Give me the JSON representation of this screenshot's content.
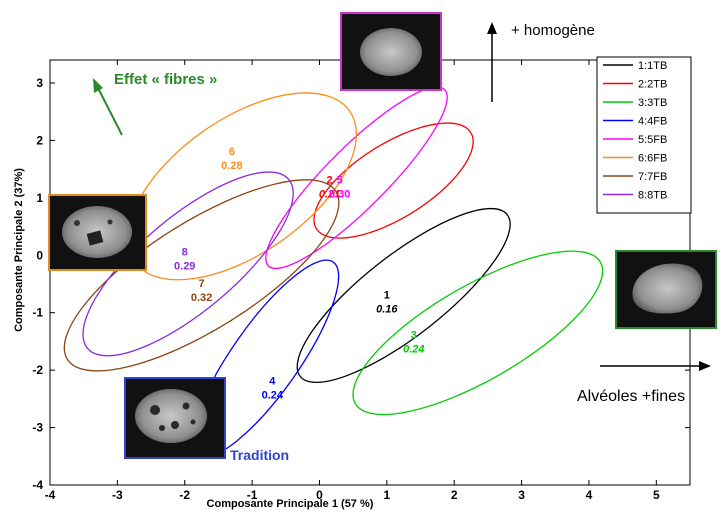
{
  "chart_data": {
    "type": "scatter",
    "xlabel": "Composante Principale 1 (57 %)",
    "ylabel": "Composante Principale 2 (37%)",
    "xlim": [
      -4,
      5.5
    ],
    "ylim": [
      -4,
      3.4
    ],
    "xticks": [
      -4,
      -3,
      -2,
      -1,
      0,
      1,
      2,
      3,
      4,
      5
    ],
    "yticks": [
      -4,
      -3,
      -2,
      -1,
      0,
      1,
      2,
      3
    ],
    "grid": false,
    "legend_position": "top-right",
    "series": [
      {
        "name": "1:1TB",
        "color": "#000000",
        "label_num": "1",
        "label_val": "0.16",
        "italic": true,
        "ellipse": {
          "cx": 1.25,
          "cy": -0.7,
          "rx": 1.95,
          "ry": 0.6,
          "angle_deg": 38
        },
        "label_pos": [
          1.0,
          -0.75
        ]
      },
      {
        "name": "2:2TB",
        "color": "#ff0000",
        "label_num": "2",
        "label_val": "0.21",
        "italic": true,
        "ellipse": {
          "cx": 1.1,
          "cy": 1.3,
          "rx": 1.35,
          "ry": 0.55,
          "angle_deg": 32
        },
        "label_pos": [
          0.15,
          1.25
        ]
      },
      {
        "name": "3:3TB",
        "color": "#00cc00",
        "label_num": "3",
        "label_val": "0.24",
        "italic": true,
        "ellipse": {
          "cx": 2.35,
          "cy": -1.35,
          "rx": 2.1,
          "ry": 0.7,
          "angle_deg": 30
        },
        "label_pos": [
          1.4,
          -1.45
        ]
      },
      {
        "name": "4:4FB",
        "color": "#0000ff",
        "label_num": "4",
        "label_val": "0.24",
        "italic": false,
        "ellipse": {
          "cx": -0.8,
          "cy": -1.8,
          "rx": 1.75,
          "ry": 0.5,
          "angle_deg": 55
        },
        "label_pos": [
          -0.7,
          -2.25
        ]
      },
      {
        "name": "5:5FB",
        "color": "#ff00ff",
        "label_num": "5",
        "label_val": "0.30",
        "italic": false,
        "ellipse": {
          "cx": 0.55,
          "cy": 1.35,
          "rx": 1.85,
          "ry": 0.45,
          "angle_deg": 45
        },
        "label_pos": [
          0.3,
          1.25
        ]
      },
      {
        "name": "6:6FB",
        "color": "#ff8c1a",
        "label_num": "6",
        "label_val": "0.28",
        "italic": false,
        "ellipse": {
          "cx": -1.15,
          "cy": 1.2,
          "rx": 1.95,
          "ry": 1.0,
          "angle_deg": 35
        },
        "label_pos": [
          -1.3,
          1.75
        ]
      },
      {
        "name": "7:7FB",
        "color": "#8b4513",
        "label_num": "7",
        "label_val": "0.32",
        "italic": false,
        "ellipse": {
          "cx": -1.75,
          "cy": -0.35,
          "rx": 2.35,
          "ry": 0.8,
          "angle_deg": 32
        },
        "label_pos": [
          -1.75,
          -0.55
        ]
      },
      {
        "name": "8:8TB",
        "color": "#8a2be2",
        "label_num": "8",
        "label_val": "0.29",
        "italic": false,
        "ellipse": {
          "cx": -1.95,
          "cy": -0.15,
          "rx": 1.95,
          "ry": 0.7,
          "angle_deg": 40
        },
        "label_pos": [
          -2.0,
          0.0
        ]
      }
    ],
    "annotations": {
      "effet_fibres": "Effet « fibres »",
      "homogene": "+ homogène",
      "alveoles": "Alvéoles +fines",
      "tradition": "Tradition"
    }
  }
}
